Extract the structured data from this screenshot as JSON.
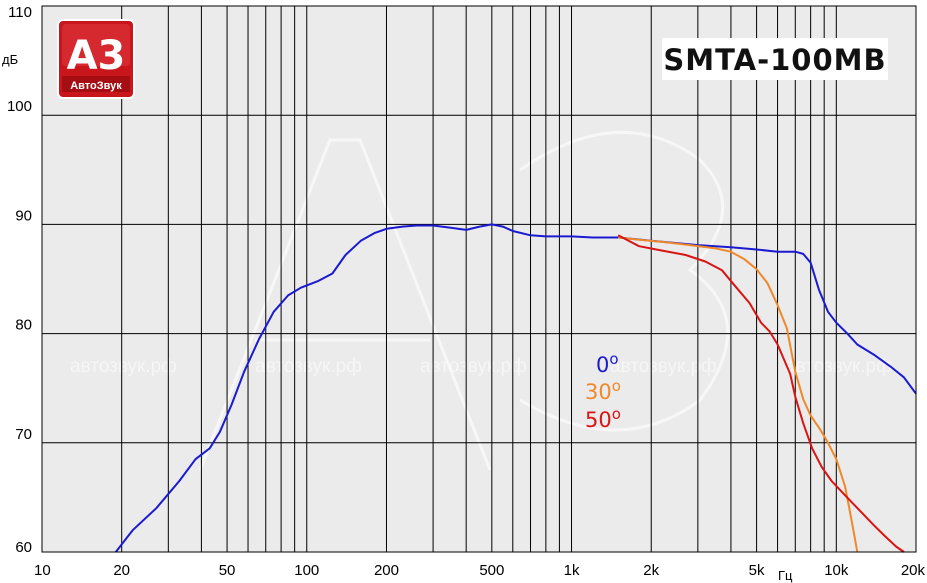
{
  "chart_data": {
    "type": "line",
    "title": "SMTA-100MB",
    "ylabel": "дБ",
    "xlabel": "Гц",
    "xscale": "log",
    "xlim": [
      10,
      20000
    ],
    "ylim": [
      60,
      110
    ],
    "grid": true,
    "legend_placement": "center",
    "x_ticks": [
      {
        "value": 10,
        "label": "10"
      },
      {
        "value": 20,
        "label": "20"
      },
      {
        "value": 50,
        "label": "50"
      },
      {
        "value": 100,
        "label": "100"
      },
      {
        "value": 200,
        "label": "200"
      },
      {
        "value": 500,
        "label": "500"
      },
      {
        "value": 1000,
        "label": "1k"
      },
      {
        "value": 2000,
        "label": "2k"
      },
      {
        "value": 5000,
        "label": "5k"
      },
      {
        "value": 10000,
        "label": "10k"
      },
      {
        "value": 20000,
        "label": "20k"
      }
    ],
    "y_ticks": [
      {
        "value": 60,
        "label": "60"
      },
      {
        "value": 70,
        "label": "70"
      },
      {
        "value": 80,
        "label": "80"
      },
      {
        "value": 90,
        "label": "90"
      },
      {
        "value": 100,
        "label": "100"
      },
      {
        "value": 110,
        "label": "110"
      }
    ],
    "series": [
      {
        "name": "0°",
        "legend_text": "0",
        "color": "#1a1ad0",
        "x": [
          19,
          22,
          27,
          33,
          38,
          43,
          47,
          52,
          58,
          66,
          75,
          85,
          95,
          110,
          125,
          140,
          160,
          180,
          200,
          230,
          260,
          300,
          350,
          400,
          450,
          500,
          550,
          600,
          700,
          800,
          1000,
          1200,
          1500,
          2000,
          3000,
          4000,
          5000,
          6000,
          7000,
          7500,
          8000,
          8600,
          9300,
          10000,
          11000,
          12000,
          14000,
          16000,
          18000,
          20000
        ],
        "y": [
          60,
          62,
          64,
          66.5,
          68.5,
          69.5,
          71,
          73.5,
          76.5,
          79.5,
          82,
          83.5,
          84.2,
          84.8,
          85.5,
          87.2,
          88.5,
          89.2,
          89.6,
          89.8,
          89.9,
          89.9,
          89.7,
          89.5,
          89.8,
          90,
          89.8,
          89.4,
          89,
          88.9,
          88.9,
          88.8,
          88.8,
          88.5,
          88.1,
          87.9,
          87.7,
          87.5,
          87.5,
          87.3,
          86.5,
          84,
          82,
          81,
          80,
          79,
          78,
          77,
          76,
          74.5
        ]
      },
      {
        "name": "30°",
        "legend_text": "30",
        "color": "#f0882a",
        "x": [
          1500,
          1800,
          2200,
          2800,
          3500,
          4000,
          4500,
          5000,
          5500,
          6000,
          6500,
          7000,
          7500,
          8000,
          8700,
          9300,
          10000,
          10800,
          11500,
          12000
        ],
        "y": [
          88.8,
          88.6,
          88.4,
          88.1,
          87.8,
          87.5,
          86.8,
          85.9,
          84.6,
          82.6,
          80.5,
          76.5,
          74,
          72.5,
          71.2,
          70,
          68.5,
          66,
          62.5,
          60
        ]
      },
      {
        "name": "50°",
        "legend_text": "50",
        "color": "#d81414",
        "x": [
          1500,
          1800,
          2200,
          2700,
          3200,
          3700,
          4200,
          4700,
          5200,
          5600,
          6000,
          6300,
          6700,
          7000,
          7500,
          8100,
          8800,
          9600,
          10500,
          11500,
          12600,
          13800,
          15200,
          16800,
          18000
        ],
        "y": [
          89,
          88,
          87.6,
          87.2,
          86.6,
          85.8,
          84.2,
          82.8,
          81,
          80.2,
          79,
          77.8,
          76.3,
          74.2,
          71.8,
          69.5,
          67.8,
          66.5,
          65.5,
          64.5,
          63.5,
          62.5,
          61.5,
          60.5,
          60
        ]
      }
    ]
  },
  "legend": {
    "degree_symbol": "o"
  },
  "watermark": {
    "texts": [
      "автозвук.рф",
      "автозвук.рф",
      "автозвук.рф",
      "автозвук.рф",
      "автозвук.рф"
    ]
  },
  "logo": {
    "big_text": "А3",
    "small_text": "АвтоЗвук",
    "color": "#c8161c"
  },
  "colors": {
    "plot_background": "#ebebeb",
    "grid": "#000000"
  }
}
